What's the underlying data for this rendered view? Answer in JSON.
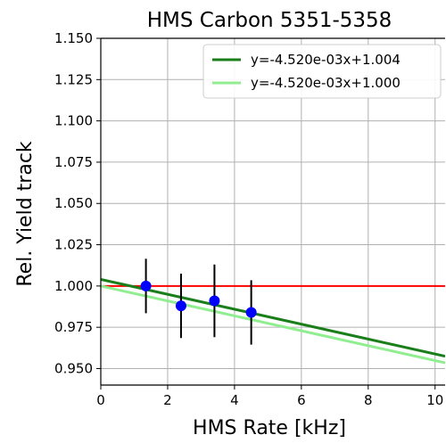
{
  "chart_data": {
    "type": "scatter",
    "title": "HMS Carbon 5351-5358",
    "xlabel": "HMS Rate [kHz]",
    "ylabel": "Rel. Yield track",
    "xlim": [
      0,
      10.3
    ],
    "ylim": [
      0.94,
      1.15
    ],
    "x_ticks": [
      0,
      2,
      4,
      6,
      8,
      10
    ],
    "x_tick_labels": [
      "0",
      "2",
      "4",
      "6",
      "8",
      "10"
    ],
    "y_ticks": [
      0.95,
      0.975,
      1.0,
      1.025,
      1.05,
      1.075,
      1.1,
      1.125,
      1.15
    ],
    "y_tick_labels": [
      "0.950",
      "0.975",
      "1.000",
      "1.025",
      "1.050",
      "1.075",
      "1.100",
      "1.125",
      "1.150"
    ],
    "grid": true,
    "legend_position": "top-right",
    "points": {
      "x": [
        1.35,
        2.4,
        3.4,
        4.5
      ],
      "y": [
        1.0,
        0.988,
        0.991,
        0.984
      ],
      "yerr": [
        0.0165,
        0.0195,
        0.022,
        0.0195
      ],
      "color": "#0000ff",
      "errorbar_color": "#000000"
    },
    "reference_line": {
      "y": 1.0,
      "color": "#ff0000"
    },
    "fit_lines": [
      {
        "name": "y=-4.520e-03x+1.004",
        "slope": -0.00452,
        "intercept": 1.004,
        "color": "#1a7f1a"
      },
      {
        "name": "y=-4.520e-03x+1.000",
        "slope": -0.00452,
        "intercept": 1.0,
        "color": "#90ee90"
      }
    ]
  }
}
